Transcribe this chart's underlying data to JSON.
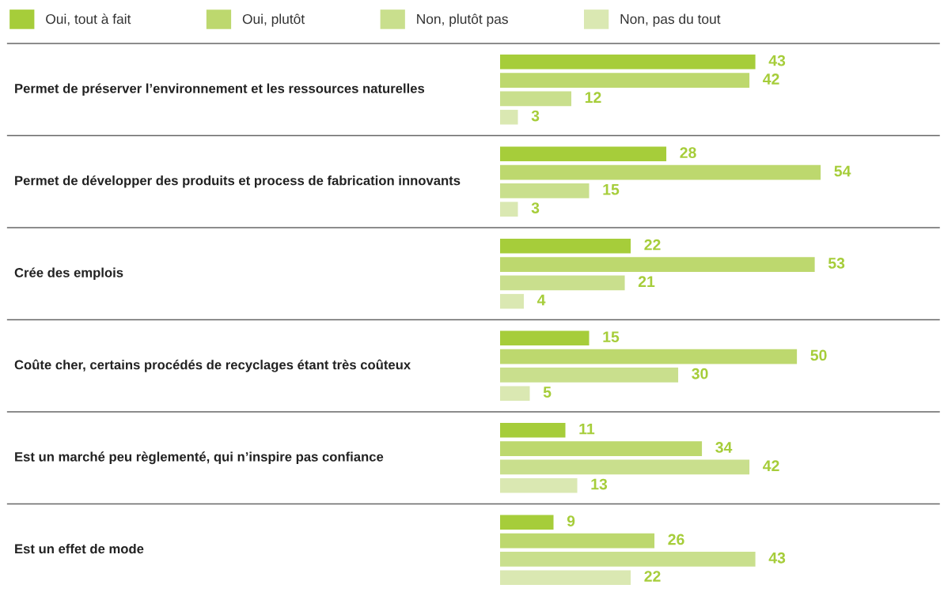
{
  "chart_data": {
    "type": "bar",
    "orientation": "horizontal",
    "data_labels": true,
    "legend": "top left",
    "categories": [
      "Permet de préserver l’environnement et les ressources naturelles",
      "Permet de développer des produits et process de fabrication innovants",
      "Crée des emplois",
      "Coûte cher, certains procédés de recyclages étant très coûteux",
      "Est un marché peu règlementé, qui n’inspire pas confiance",
      "Est un effet de mode"
    ],
    "series": [
      {
        "name": "Oui, tout à fait",
        "color": "#a6cd3a",
        "values": [
          43,
          28,
          22,
          15,
          11,
          9
        ]
      },
      {
        "name": "Oui, plutôt",
        "color": "#bdd86e",
        "values": [
          42,
          54,
          53,
          50,
          34,
          26
        ]
      },
      {
        "name": "Non, plutôt pas",
        "color": "#c9df8d",
        "values": [
          12,
          15,
          21,
          30,
          42,
          43
        ]
      },
      {
        "name": "Non, pas du tout",
        "color": "#dae8b2",
        "values": [
          3,
          3,
          4,
          5,
          13,
          22
        ]
      }
    ]
  }
}
